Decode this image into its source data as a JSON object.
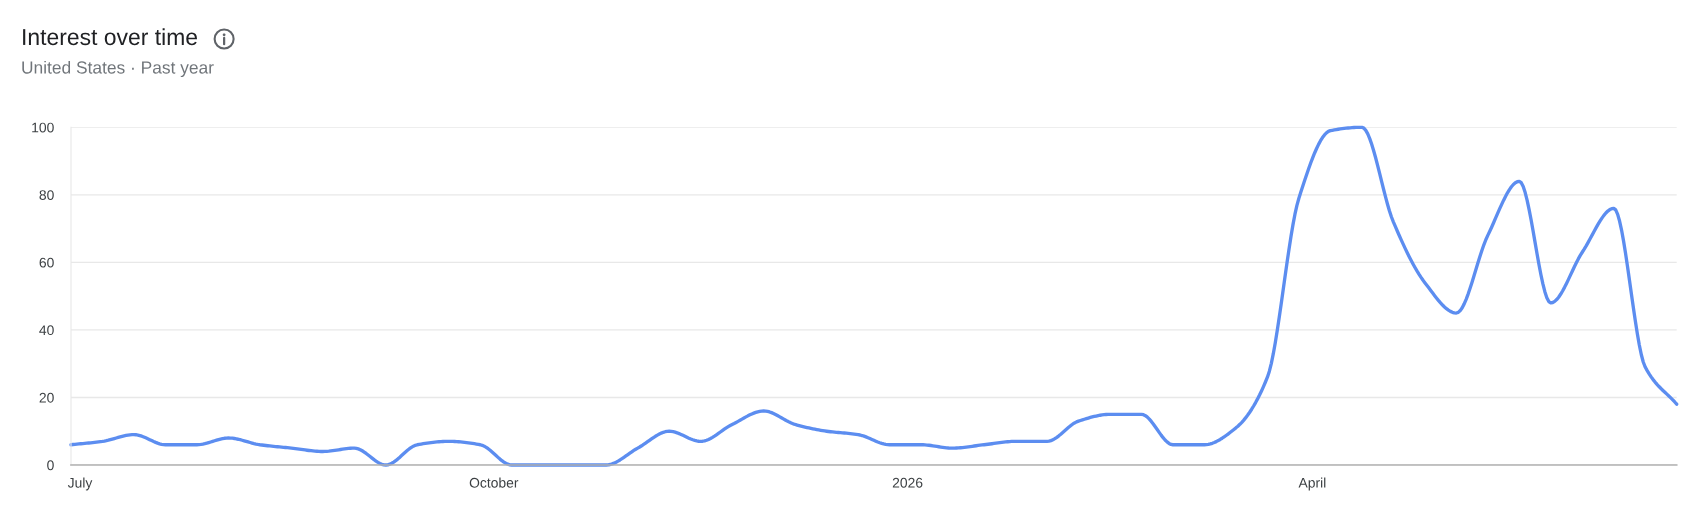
{
  "chart_data": {
    "type": "line",
    "title": "Interest over time",
    "subtitle": "United States · Past year",
    "x": [
      "2025-06-29",
      "2025-07-06",
      "2025-07-13",
      "2025-07-20",
      "2025-07-27",
      "2025-08-03",
      "2025-08-10",
      "2025-08-17",
      "2025-08-24",
      "2025-08-31",
      "2025-09-07",
      "2025-09-14",
      "2025-09-21",
      "2025-09-28",
      "2025-10-05",
      "2025-10-12",
      "2025-10-19",
      "2025-10-26",
      "2025-11-02",
      "2025-11-09",
      "2025-11-16",
      "2025-11-23",
      "2025-11-30",
      "2025-12-07",
      "2025-12-14",
      "2025-12-21",
      "2025-12-28",
      "2026-01-04",
      "2026-01-11",
      "2026-01-18",
      "2026-01-25",
      "2026-02-01",
      "2026-02-08",
      "2026-02-15",
      "2026-02-22",
      "2026-03-01",
      "2026-03-08",
      "2026-03-15",
      "2026-03-22",
      "2026-03-29",
      "2026-04-05",
      "2026-04-12",
      "2026-04-19",
      "2026-04-26",
      "2026-05-03",
      "2026-05-10",
      "2026-05-17",
      "2026-05-24",
      "2026-05-31",
      "2026-06-07",
      "2026-06-14",
      "2026-06-21"
    ],
    "series": [
      {
        "color": "#5c8df0",
        "values": [
          6,
          7,
          9,
          6,
          6,
          8,
          6,
          5,
          4,
          5,
          0,
          6,
          7,
          6,
          0,
          0,
          0,
          0,
          5,
          10,
          7,
          12,
          16,
          12,
          10,
          9,
          6,
          6,
          5,
          6,
          7,
          7,
          13,
          15,
          15,
          6,
          6,
          11,
          26,
          79,
          99,
          100,
          72,
          54,
          45,
          68,
          84,
          48,
          63,
          76,
          29,
          18
        ]
      }
    ],
    "xlim": [
      "2025-06-29",
      "2026-06-21"
    ],
    "xticks": [
      {
        "value": "2025-07-01",
        "label": "July"
      },
      {
        "value": "2025-10-01",
        "label": "October"
      },
      {
        "value": "2026-01-01",
        "label": "2026"
      },
      {
        "value": "2026-04-01",
        "label": "April"
      }
    ],
    "ylim": [
      0,
      100
    ],
    "yticks": [
      0,
      20,
      40,
      60,
      80,
      100
    ],
    "grid": "y"
  }
}
